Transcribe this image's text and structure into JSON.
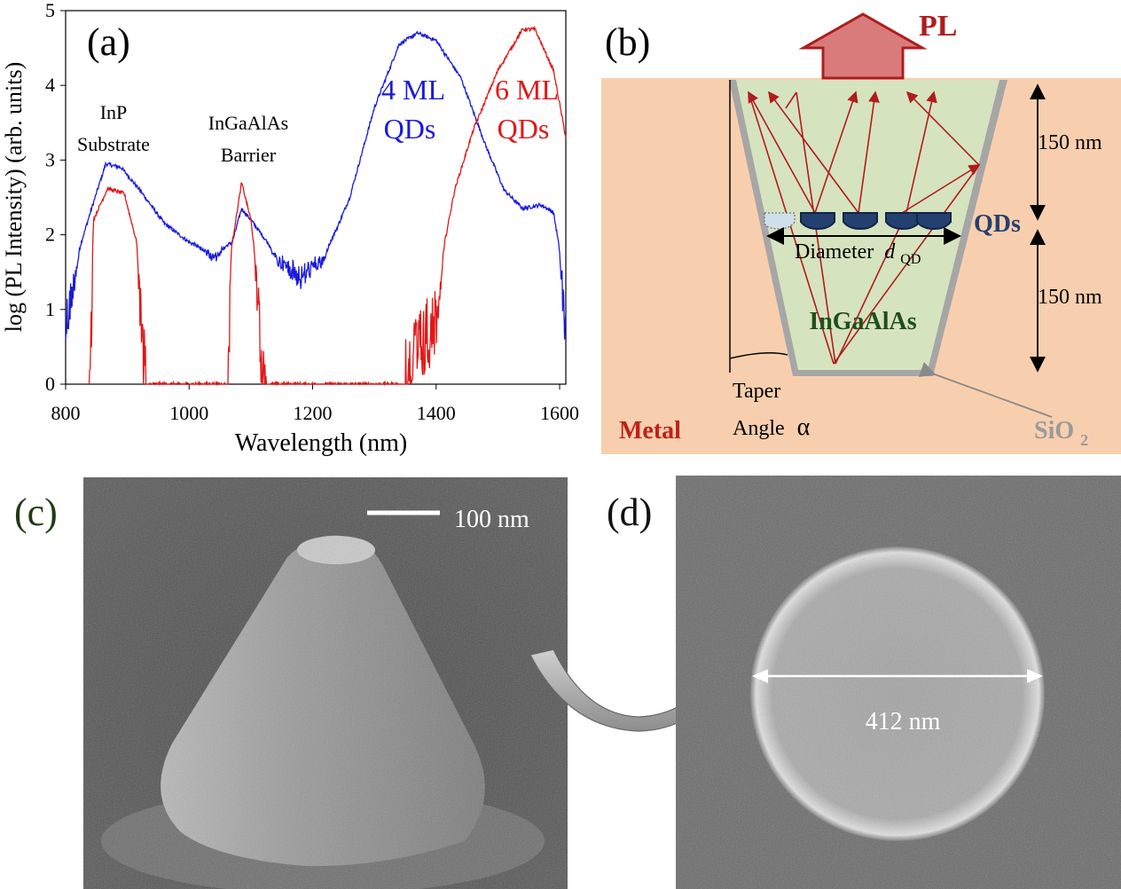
{
  "panel_labels": {
    "a": "(a)",
    "b": "(b)",
    "c": "(c)",
    "d": "(d)"
  },
  "chart_data": {
    "type": "line",
    "xlabel": "Wavelength (nm)",
    "ylabel": "log (PL Intensity) (arb. units)",
    "xlim": [
      800,
      1610
    ],
    "ylim": [
      0,
      5
    ],
    "xticks": [
      800,
      1000,
      1200,
      1400,
      1600
    ],
    "yticks": [
      0,
      1,
      2,
      3,
      4,
      5
    ],
    "annotations": {
      "inp_line1": "InP",
      "inp_line2": "Substrate",
      "barrier_line1": "InGaAlAs",
      "barrier_line2": "Barrier",
      "ml4_line1": "4 ML",
      "ml4_line2": "QDs",
      "ml6_line1": "6 ML",
      "ml6_line2": "QDs"
    },
    "colors": {
      "ml4": "#1a1adc",
      "ml6": "#e01818"
    },
    "series": [
      {
        "name": "4 ML QDs",
        "color": "#1a1adc",
        "noise_floor": 0.95,
        "peaks": [
          [
            800,
            1.2
          ],
          [
            840,
            2.3
          ],
          [
            865,
            2.95
          ],
          [
            890,
            2.9
          ],
          [
            920,
            2.6
          ],
          [
            960,
            2.15
          ],
          [
            1000,
            1.9
          ],
          [
            1040,
            1.75
          ],
          [
            1070,
            1.9
          ],
          [
            1085,
            2.35
          ],
          [
            1100,
            2.2
          ],
          [
            1140,
            1.75
          ],
          [
            1180,
            1.6
          ],
          [
            1220,
            1.75
          ],
          [
            1240,
            2.1
          ],
          [
            1260,
            2.5
          ],
          [
            1300,
            3.7
          ],
          [
            1340,
            4.55
          ],
          [
            1370,
            4.7
          ],
          [
            1400,
            4.6
          ],
          [
            1440,
            4.1
          ],
          [
            1480,
            3.2
          ],
          [
            1510,
            2.6
          ],
          [
            1540,
            2.35
          ],
          [
            1570,
            2.4
          ],
          [
            1590,
            2.3
          ],
          [
            1600,
            1.8
          ],
          [
            1610,
            1.1
          ]
        ]
      },
      {
        "name": "6 ML QDs",
        "color": "#e01818",
        "noise_floor": 1.0,
        "peaks": [
          [
            838,
            0
          ],
          [
            845,
            2.2
          ],
          [
            868,
            2.62
          ],
          [
            895,
            2.55
          ],
          [
            915,
            1.9
          ],
          [
            930,
            0.5
          ],
          [
            935,
            0
          ],
          [
            1060,
            0
          ],
          [
            1068,
            1.8
          ],
          [
            1085,
            2.7
          ],
          [
            1100,
            2.2
          ],
          [
            1120,
            0.8
          ],
          [
            1128,
            0
          ],
          [
            1340,
            0
          ],
          [
            1350,
            0.8
          ],
          [
            1380,
            1.1
          ],
          [
            1400,
            1.3
          ],
          [
            1430,
            2.6
          ],
          [
            1460,
            3.4
          ],
          [
            1500,
            4.2
          ],
          [
            1540,
            4.75
          ],
          [
            1560,
            4.75
          ],
          [
            1590,
            4.2
          ],
          [
            1610,
            3.3
          ]
        ]
      }
    ]
  },
  "schematic": {
    "pl_label": "PL",
    "qds_label": "QDs",
    "diameter_label": "Diameter",
    "dqd_main": "d",
    "dqd_sub": "QD",
    "ingaalas_label": "InGaAlAs",
    "top_dim": "150 nm",
    "bottom_dim": "150 nm",
    "taper_line1": "Taper",
    "taper_line2": "Angle",
    "alpha": "α",
    "metal_label": "Metal",
    "sio2_main": "SiO",
    "sio2_sub": "2",
    "colors": {
      "metal": "#f8cfae",
      "core": "#d6e3bf",
      "sio2": "#a6a6a6",
      "qd": "#24406e",
      "arrow": "#b01c1c",
      "pl_arrow": "#d97b7b"
    }
  },
  "sem_c": {
    "scale_bar_label": "100 nm"
  },
  "sem_d": {
    "diameter_label": "412 nm"
  }
}
